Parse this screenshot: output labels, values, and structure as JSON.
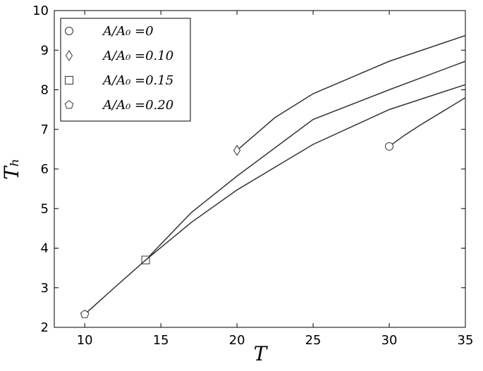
{
  "chart_data": {
    "type": "line",
    "x_label": "T",
    "y_label": "Tₕ",
    "xlim": [
      8,
      35
    ],
    "ylim": [
      2,
      10
    ],
    "xticks": [
      10,
      15,
      20,
      25,
      30,
      35
    ],
    "yticks": [
      2,
      3,
      4,
      5,
      6,
      7,
      8,
      9,
      10
    ],
    "legend": "upper left",
    "series": [
      {
        "name": "A/A₀ =0",
        "color": "#333333",
        "marker": "circle",
        "x": [
          30,
          31,
          32,
          33.5,
          35
        ],
        "values": [
          6.57,
          6.85,
          7.1,
          7.45,
          7.8
        ]
      },
      {
        "name": "A/A₀ =0.10",
        "color": "#333333",
        "marker": "diamond",
        "x": [
          20,
          22.5,
          25,
          30,
          35
        ],
        "values": [
          6.47,
          7.3,
          7.9,
          8.72,
          9.37
        ]
      },
      {
        "name": "A/A₀ =0.15",
        "color": "#333333",
        "marker": "square",
        "x": [
          14,
          17,
          20,
          25,
          30,
          35
        ],
        "values": [
          3.7,
          4.9,
          5.82,
          7.25,
          8.0,
          8.72
        ]
      },
      {
        "name": "A/A₀ =0.20",
        "color": "#333333",
        "marker": "pentagon",
        "x": [
          10,
          12,
          14,
          17,
          20,
          25,
          30,
          35
        ],
        "values": [
          2.33,
          3.02,
          3.7,
          4.65,
          5.47,
          6.62,
          7.5,
          8.13
        ]
      }
    ]
  }
}
